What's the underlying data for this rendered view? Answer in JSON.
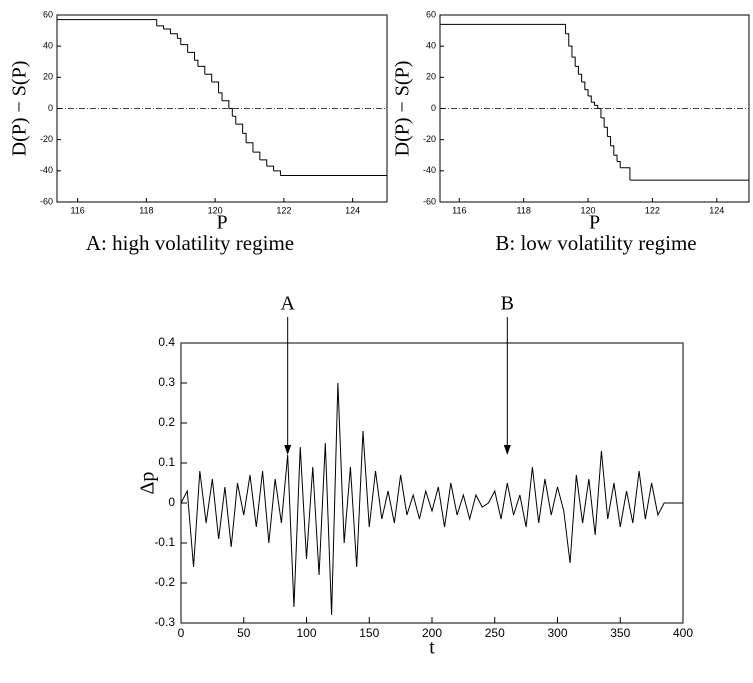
{
  "chart_data": [
    {
      "type": "line",
      "step": "post",
      "caption": "A: high volatility regime",
      "x_label": "P",
      "y_label": "D(P) − S(P)",
      "x": [
        115.4,
        118.3,
        118.5,
        118.7,
        118.9,
        119.0,
        119.2,
        119.4,
        119.5,
        119.7,
        119.9,
        120.1,
        120.2,
        120.4,
        120.5,
        120.6,
        120.8,
        120.9,
        121.1,
        121.3,
        121.5,
        121.7,
        121.9,
        125
      ],
      "values": [
        57,
        53,
        51,
        48,
        45,
        41,
        36,
        31,
        27,
        22,
        17,
        10,
        5,
        0,
        -5,
        -10,
        -16,
        -22,
        -28,
        -33,
        -37,
        -40,
        -43,
        -43
      ],
      "color": "#000000",
      "reference_line": 0,
      "xlim": [
        115.4,
        125
      ],
      "xticks": [
        116,
        118,
        120,
        122,
        124
      ],
      "ylim": [
        -60,
        60
      ],
      "yticks": [
        -60,
        -40,
        -20,
        0,
        20,
        40,
        60
      ]
    },
    {
      "type": "line",
      "step": "post",
      "caption": "B: low volatility regime",
      "x_label": "P",
      "y_label": "D(P) − S(P)",
      "x": [
        115.4,
        119.3,
        119.4,
        119.5,
        119.6,
        119.7,
        119.8,
        119.9,
        120.0,
        120.1,
        120.2,
        120.3,
        120.4,
        120.5,
        120.6,
        120.7,
        120.8,
        120.9,
        121.0,
        121.3,
        125
      ],
      "values": [
        54,
        48,
        40,
        33,
        27,
        22,
        17,
        12,
        8,
        4,
        2,
        0,
        -6,
        -12,
        -18,
        -24,
        -30,
        -34,
        -38,
        -46,
        -46
      ],
      "color": "#000000",
      "reference_line": 0,
      "xlim": [
        115.4,
        125
      ],
      "xticks": [
        116,
        118,
        120,
        122,
        124
      ],
      "ylim": [
        -60,
        60
      ],
      "yticks": [
        -60,
        -40,
        -20,
        0,
        20,
        40,
        60
      ]
    },
    {
      "type": "line",
      "x_label": "t",
      "y_label": "Δp",
      "x": [
        0,
        5,
        10,
        15,
        20,
        25,
        30,
        35,
        40,
        45,
        50,
        55,
        60,
        65,
        70,
        75,
        80,
        85,
        90,
        95,
        100,
        105,
        110,
        115,
        120,
        125,
        130,
        135,
        140,
        145,
        150,
        155,
        160,
        165,
        170,
        175,
        180,
        185,
        190,
        195,
        200,
        205,
        210,
        215,
        220,
        225,
        230,
        235,
        240,
        245,
        250,
        255,
        260,
        265,
        270,
        275,
        280,
        285,
        290,
        295,
        300,
        305,
        310,
        315,
        320,
        325,
        330,
        335,
        340,
        345,
        350,
        355,
        360,
        365,
        370,
        375,
        380,
        385,
        400
      ],
      "values": [
        0,
        0.03,
        -0.16,
        0.08,
        -0.05,
        0.06,
        -0.09,
        0.04,
        -0.11,
        0.05,
        -0.03,
        0.07,
        -0.06,
        0.08,
        -0.1,
        0.06,
        -0.05,
        0.12,
        -0.26,
        0.14,
        -0.14,
        0.09,
        -0.18,
        0.15,
        -0.28,
        0.3,
        -0.1,
        0.09,
        -0.16,
        0.18,
        -0.06,
        0.08,
        -0.04,
        0.03,
        -0.05,
        0.07,
        -0.03,
        0.02,
        -0.04,
        0.03,
        -0.02,
        0.04,
        -0.06,
        0.05,
        -0.03,
        0.02,
        -0.04,
        0.02,
        -0.01,
        0,
        0.03,
        -0.04,
        0.05,
        -0.03,
        0.02,
        -0.06,
        0.09,
        -0.05,
        0.06,
        -0.03,
        0.04,
        -0.02,
        -0.15,
        0.07,
        -0.05,
        0.06,
        -0.08,
        0.13,
        -0.04,
        0.05,
        -0.06,
        0.03,
        -0.05,
        0.08,
        -0.04,
        0.05,
        -0.03,
        0,
        0
      ],
      "color": "#000000",
      "annotations": [
        {
          "text": "A",
          "x": 85,
          "y": 0.12
        },
        {
          "text": "B",
          "x": 260,
          "y": 0.12
        }
      ],
      "xlim": [
        0,
        400
      ],
      "xticks": [
        0,
        50,
        100,
        150,
        200,
        250,
        300,
        350,
        400
      ],
      "ylim": [
        -0.3,
        0.4
      ],
      "yticks": [
        -0.3,
        -0.2,
        -0.1,
        0,
        0.1,
        0.2,
        0.3,
        0.4
      ]
    }
  ]
}
